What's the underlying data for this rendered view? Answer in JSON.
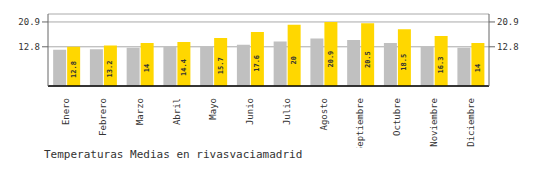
{
  "chart_data": {
    "type": "bar",
    "title": "Temperaturas Medias en rivasvaciamadrid",
    "categories": [
      "Enero",
      "Febrero",
      "Marzo",
      "Abril",
      "Mayo",
      "Junio",
      "Julio",
      "Agosto",
      "Septiembre",
      "Octubre",
      "Noviembre",
      "Diciembre"
    ],
    "series": [
      {
        "color": "#C0C0C0",
        "values": [
          11.8,
          12.0,
          12.5,
          12.8,
          13.0,
          13.5,
          14.5,
          15.5,
          15.0,
          14.0,
          13.0,
          12.5
        ]
      },
      {
        "color": "#FFD700",
        "values": [
          12.8,
          13.2,
          14.0,
          14.4,
          15.7,
          17.6,
          20.0,
          20.9,
          20.5,
          18.5,
          16.3,
          14.0
        ],
        "data_labels": true
      }
    ],
    "ylim": [
      0,
      23.5
    ],
    "yticks": [
      12.8,
      20.9
    ],
    "y2lim": [
      0,
      23.5
    ],
    "y2ticks": [
      12.8,
      20.9
    ],
    "grid": true
  }
}
